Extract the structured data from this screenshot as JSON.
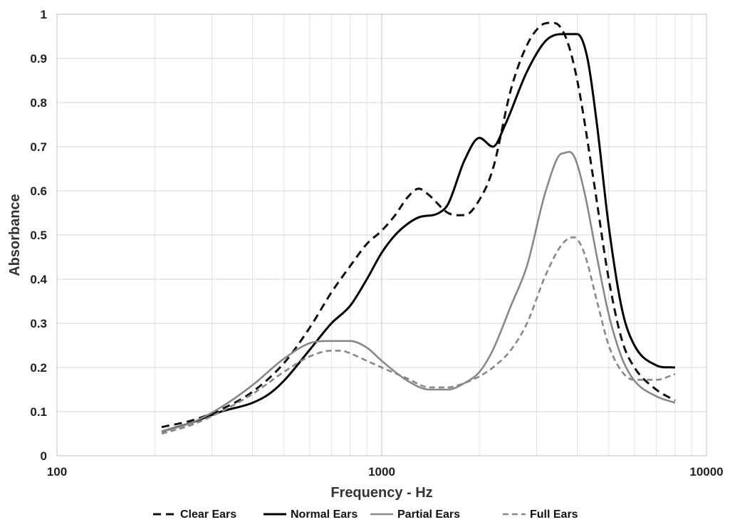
{
  "chart_data": {
    "type": "line",
    "title": "",
    "xlabel": "Frequency - Hz",
    "ylabel": "Absorbance",
    "x_scale": "log",
    "xlim": [
      100,
      10000
    ],
    "ylim": [
      0,
      1
    ],
    "x_ticks": [
      "100",
      "1000",
      "10000"
    ],
    "y_ticks": [
      "0",
      "0.1",
      "0.2",
      "0.3",
      "0.4",
      "0.5",
      "0.6",
      "0.7",
      "0.8",
      "0.9",
      "1"
    ],
    "grid": true,
    "legend_position": "bottom",
    "series": [
      {
        "name": "Clear Ears",
        "color": "#111111",
        "dash": "dashed",
        "x": [
          210,
          260,
          320,
          400,
          500,
          600,
          700,
          800,
          900,
          1000,
          1100,
          1200,
          1300,
          1400,
          1600,
          1800,
          2000,
          2200,
          2500,
          2800,
          3100,
          3400,
          3700,
          4000,
          4500,
          5000,
          5500,
          6000,
          7000,
          8000
        ],
        "y": [
          0.065,
          0.08,
          0.105,
          0.145,
          0.21,
          0.29,
          0.37,
          0.43,
          0.48,
          0.51,
          0.545,
          0.585,
          0.605,
          0.59,
          0.55,
          0.545,
          0.58,
          0.65,
          0.83,
          0.93,
          0.975,
          0.98,
          0.945,
          0.85,
          0.62,
          0.4,
          0.26,
          0.2,
          0.15,
          0.125
        ]
      },
      {
        "name": "Normal Ears",
        "color": "#000000",
        "dash": "solid",
        "x": [
          210,
          260,
          320,
          400,
          450,
          500,
          600,
          700,
          800,
          900,
          1000,
          1100,
          1200,
          1300,
          1500,
          1600,
          1800,
          2000,
          2200,
          2400,
          2800,
          3200,
          3600,
          4000,
          4300,
          4600,
          5000,
          5500,
          6000,
          7000,
          8000
        ],
        "y": [
          0.055,
          0.075,
          0.1,
          0.12,
          0.14,
          0.17,
          0.24,
          0.3,
          0.34,
          0.4,
          0.46,
          0.5,
          0.525,
          0.54,
          0.55,
          0.57,
          0.67,
          0.72,
          0.7,
          0.75,
          0.87,
          0.94,
          0.955,
          0.955,
          0.9,
          0.75,
          0.52,
          0.33,
          0.25,
          0.205,
          0.2
        ]
      },
      {
        "name": "Partial Ears",
        "color": "#888888",
        "dash": "solid",
        "x": [
          210,
          260,
          320,
          400,
          500,
          600,
          700,
          800,
          900,
          1000,
          1200,
          1400,
          1600,
          1800,
          2000,
          2200,
          2500,
          2800,
          3200,
          3600,
          3900,
          4200,
          4600,
          5000,
          5500,
          6000,
          7000,
          8000
        ],
        "y": [
          0.055,
          0.075,
          0.11,
          0.16,
          0.22,
          0.255,
          0.26,
          0.26,
          0.245,
          0.215,
          0.17,
          0.15,
          0.15,
          0.165,
          0.19,
          0.24,
          0.34,
          0.43,
          0.6,
          0.685,
          0.68,
          0.6,
          0.45,
          0.32,
          0.22,
          0.17,
          0.135,
          0.12
        ]
      },
      {
        "name": "Full Ears",
        "color": "#888888",
        "dash": "dashed",
        "x": [
          210,
          260,
          320,
          400,
          500,
          600,
          700,
          750,
          800,
          900,
          1000,
          1200,
          1400,
          1600,
          1800,
          2000,
          2200,
          2500,
          2800,
          3200,
          3600,
          3900,
          4200,
          4600,
          5000,
          5500,
          6000,
          7000,
          8000
        ],
        "y": [
          0.05,
          0.07,
          0.1,
          0.14,
          0.19,
          0.225,
          0.238,
          0.238,
          0.232,
          0.215,
          0.2,
          0.175,
          0.155,
          0.155,
          0.165,
          0.18,
          0.2,
          0.24,
          0.3,
          0.41,
          0.48,
          0.495,
          0.46,
          0.35,
          0.25,
          0.19,
          0.172,
          0.172,
          0.185
        ]
      }
    ]
  }
}
